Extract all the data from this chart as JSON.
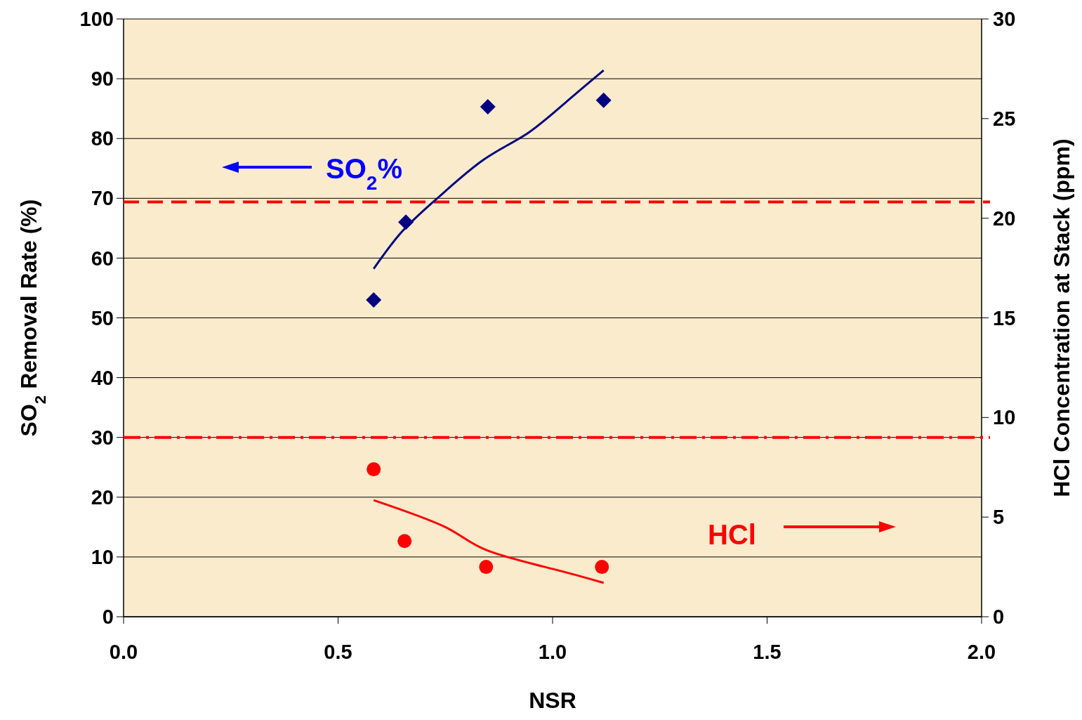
{
  "chart_data": {
    "type": "scatter",
    "xlabel": "NSR",
    "ylabel": "SO$_{2}$ Removal Rate (%)",
    "y2label": "HCl Concentration at Stack (ppm)",
    "xlim": [
      0,
      2
    ],
    "xticks": [
      {
        "value": 0,
        "label": "0.0"
      },
      {
        "value": 0.5,
        "label": "0.5"
      },
      {
        "value": 1,
        "label": "1.0"
      },
      {
        "value": 1.5,
        "label": "1.5"
      },
      {
        "value": 2,
        "label": "2.0"
      }
    ],
    "ylim": [
      0,
      100
    ],
    "yticks": [
      0,
      10,
      20,
      30,
      40,
      50,
      60,
      70,
      80,
      90,
      100
    ],
    "y2lim": [
      0,
      30
    ],
    "y2ticks": [
      0,
      5,
      10,
      15,
      20,
      25,
      30
    ],
    "grid": "y",
    "series": [
      {
        "color": "#000080",
        "marker": "diamond",
        "x": [
          0.583,
          0.658,
          0.849,
          1.119
        ],
        "values": [
          53.0,
          66.0,
          85.3,
          86.4
        ]
      },
      {
        "type": "line",
        "color": "#000080",
        "marker": "none",
        "line_style": "solid",
        "x": [
          0.583,
          0.65,
          0.736,
          0.84,
          0.94,
          1.03,
          1.119
        ],
        "values": [
          58.2,
          64.5,
          70.3,
          76.5,
          80.8,
          86,
          91.4
        ]
      },
      {
        "axis": "y2",
        "color": "#ff0000",
        "marker": "circle",
        "x": [
          0.583,
          0.655,
          0.845,
          1.115
        ],
        "values": [
          7.4,
          3.8,
          2.5,
          2.5
        ]
      },
      {
        "type": "line",
        "axis": "y2",
        "color": "#ff0000",
        "marker": "none",
        "line_style": "solid",
        "x": [
          0.583,
          0.75,
          0.845,
          1.0,
          1.119
        ],
        "values": [
          5.85,
          4.5,
          3.35,
          2.4,
          1.7
        ]
      }
    ],
    "ref_lines": [
      {
        "axis": "y",
        "value": 69.4,
        "color": "#ff0000",
        "line_style": "dashed"
      },
      {
        "axis": "y2",
        "value": 9,
        "color": "#ff0000",
        "line_style": "dotted"
      }
    ],
    "annotations": [
      "SO$_{2}$%",
      "HCl"
    ]
  }
}
